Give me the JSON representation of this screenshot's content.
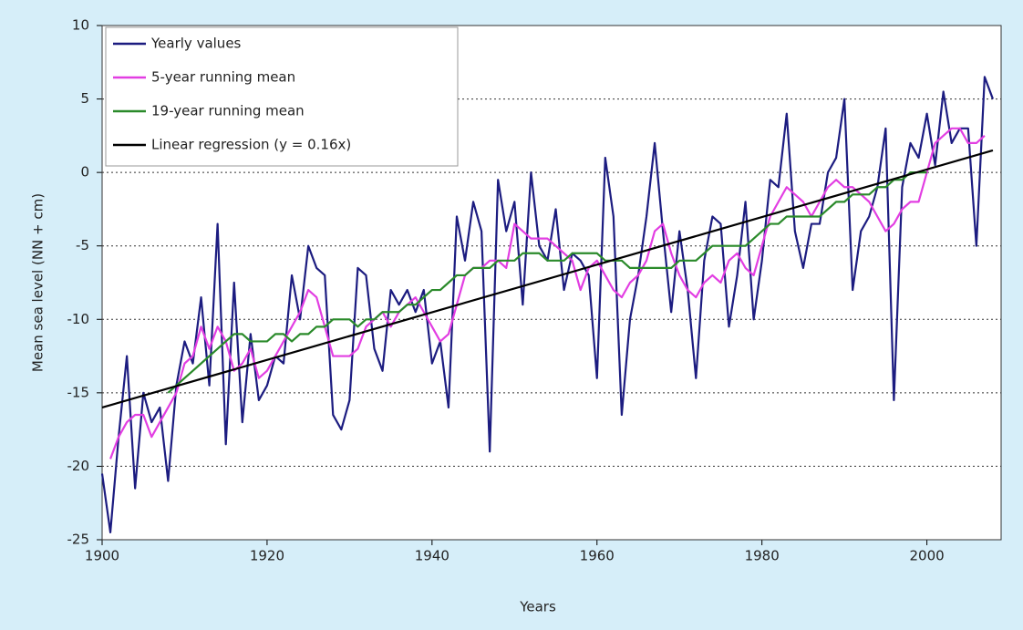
{
  "chart_data": {
    "type": "line",
    "xlabel": "Years",
    "ylabel": "Mean sea level (NN + cm)",
    "x": [
      1900,
      1901,
      1902,
      1903,
      1904,
      1905,
      1906,
      1907,
      1908,
      1909,
      1910,
      1911,
      1912,
      1913,
      1914,
      1915,
      1916,
      1917,
      1918,
      1919,
      1920,
      1921,
      1922,
      1923,
      1924,
      1925,
      1926,
      1927,
      1928,
      1929,
      1930,
      1931,
      1932,
      1933,
      1934,
      1935,
      1936,
      1937,
      1938,
      1939,
      1940,
      1941,
      1942,
      1943,
      1944,
      1945,
      1946,
      1947,
      1948,
      1949,
      1950,
      1951,
      1952,
      1953,
      1954,
      1955,
      1956,
      1957,
      1958,
      1959,
      1960,
      1961,
      1962,
      1963,
      1964,
      1965,
      1966,
      1967,
      1968,
      1969,
      1970,
      1971,
      1972,
      1973,
      1974,
      1975,
      1976,
      1977,
      1978,
      1979,
      1980,
      1981,
      1982,
      1983,
      1984,
      1985,
      1986,
      1987,
      1988,
      1989,
      1990,
      1991,
      1992,
      1993,
      1994,
      1995,
      1996,
      1997,
      1998,
      1999,
      2000,
      2001,
      2002,
      2003,
      2004,
      2005,
      2006,
      2007,
      2008
    ],
    "series": [
      {
        "name": "Yearly values",
        "color": "#1c1c80",
        "values": [
          -20.5,
          -24.5,
          -18,
          -12.5,
          -21.5,
          -15,
          -17,
          -16,
          -21,
          -14.5,
          -11.5,
          -13,
          -8.5,
          -14.5,
          -3.5,
          -18.5,
          -7.5,
          -17,
          -11,
          -15.5,
          -14.5,
          -12.5,
          -13,
          -7,
          -10,
          -5,
          -6.5,
          -7,
          -16.5,
          -17.5,
          -15.5,
          -6.5,
          -7,
          -12,
          -13.5,
          -8,
          -9,
          -8,
          -9.5,
          -8,
          -13,
          -11.5,
          -16,
          -3,
          -6,
          -2,
          -4,
          -19,
          -0.5,
          -4,
          -2,
          -9,
          0,
          -5,
          -6,
          -2.5,
          -8,
          -5.5,
          -6,
          -7,
          -14,
          1,
          -3,
          -16.5,
          -10,
          -7,
          -3,
          2,
          -4,
          -9.5,
          -4,
          -8,
          -14,
          -6,
          -3,
          -3.5,
          -10.5,
          -7,
          -2,
          -10,
          -6,
          -0.5,
          -1,
          4,
          -4,
          -6.5,
          -3.5,
          -3.5,
          0,
          1,
          5,
          -8,
          -4,
          -3,
          -1,
          3,
          -15.5,
          -1,
          2,
          1,
          4,
          0.5,
          5.5,
          2,
          3,
          3,
          -5,
          6.5,
          5
        ]
      },
      {
        "name": "5-year running mean",
        "color": "#e23ee2",
        "values": [
          null,
          -19.5,
          -18,
          -17,
          -16.5,
          -16.5,
          -18,
          -17,
          -16,
          -15,
          -13,
          -12.5,
          -10.5,
          -12,
          -10.5,
          -11.5,
          -13.5,
          -13,
          -12,
          -14,
          -13.5,
          -12.5,
          -11.5,
          -10.5,
          -9.5,
          -8,
          -8.5,
          -10.5,
          -12.5,
          -12.5,
          -12.5,
          -12,
          -10.5,
          -10,
          -9.5,
          -10.5,
          -9.5,
          -9,
          -8.5,
          -9.5,
          -10.5,
          -11.5,
          -11,
          -9,
          -7,
          -6.5,
          -6.5,
          -6,
          -6,
          -6.5,
          -3.5,
          -4,
          -4.5,
          -4.5,
          -4.5,
          -5,
          -5.5,
          -6,
          -8,
          -6.5,
          -6,
          -7,
          -8,
          -8.5,
          -7.5,
          -7,
          -6,
          -4,
          -3.5,
          -5.5,
          -7,
          -8,
          -8.5,
          -7.5,
          -7,
          -7.5,
          -6,
          -5.5,
          -6.5,
          -7,
          -5,
          -3,
          -2,
          -1,
          -1.5,
          -2,
          -3,
          -2,
          -1,
          -0.5,
          -1,
          -1,
          -1.5,
          -2,
          -3,
          -4,
          -3.5,
          -2.5,
          -2,
          -2,
          0,
          2,
          2.5,
          3,
          3,
          2,
          2,
          2.5,
          null
        ]
      },
      {
        "name": "19-year running mean",
        "color": "#2a8a2a",
        "values": [
          null,
          null,
          null,
          null,
          null,
          null,
          null,
          null,
          -15,
          -14.5,
          -14,
          -13.5,
          -13,
          -12.5,
          -12,
          -11.5,
          -11,
          -11,
          -11.5,
          -11.5,
          -11.5,
          -11,
          -11,
          -11.5,
          -11,
          -11,
          -10.5,
          -10.5,
          -10,
          -10,
          -10,
          -10.5,
          -10,
          -10,
          -9.5,
          -9.5,
          -9.5,
          -9,
          -9,
          -8.5,
          -8,
          -8,
          -7.5,
          -7,
          -7,
          -6.5,
          -6.5,
          -6.5,
          -6,
          -6,
          -6,
          -5.5,
          -5.5,
          -5.5,
          -6,
          -6,
          -6,
          -5.5,
          -5.5,
          -5.5,
          -5.5,
          -6,
          -6,
          -6,
          -6.5,
          -6.5,
          -6.5,
          -6.5,
          -6.5,
          -6.5,
          -6,
          -6,
          -6,
          -5.5,
          -5,
          -5,
          -5,
          -5,
          -5,
          -4.5,
          -4,
          -3.5,
          -3.5,
          -3,
          -3,
          -3,
          -3,
          -3,
          -2.5,
          -2,
          -2,
          -1.5,
          -1.5,
          -1.5,
          -1,
          -1,
          -0.5,
          -0.5,
          0,
          0,
          0,
          null,
          null,
          null,
          null,
          null,
          null,
          null,
          null
        ]
      },
      {
        "name": "Linear regression (y = 0.16x)",
        "color": "#000000",
        "x": [
          1900,
          2008
        ],
        "values": [
          -16,
          1.5
        ]
      }
    ],
    "xlim": [
      1900,
      2009
    ],
    "xticks": [
      1900,
      1920,
      1940,
      1960,
      1980,
      2000
    ],
    "ylim": [
      -25,
      10
    ],
    "yticks": [
      -25,
      -20,
      -15,
      -10,
      -5,
      0,
      5,
      10
    ],
    "grid": true,
    "legend": "upper left"
  }
}
